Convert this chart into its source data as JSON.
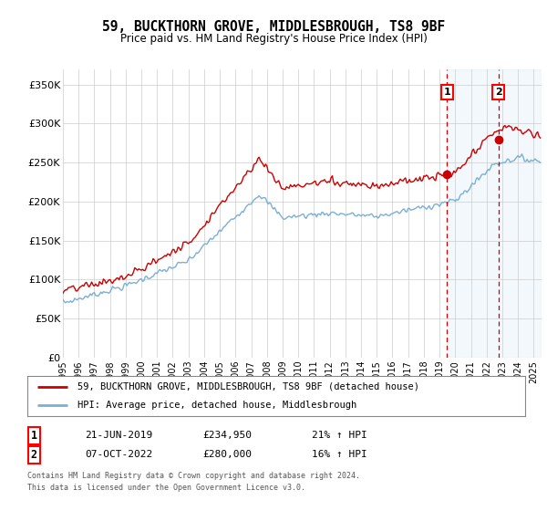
{
  "title": "59, BUCKTHORN GROVE, MIDDLESBROUGH, TS8 9BF",
  "subtitle": "Price paid vs. HM Land Registry's House Price Index (HPI)",
  "ylabel_ticks": [
    "£0",
    "£50K",
    "£100K",
    "£150K",
    "£200K",
    "£250K",
    "£300K",
    "£350K"
  ],
  "ytick_values": [
    0,
    50000,
    100000,
    150000,
    200000,
    250000,
    300000,
    350000
  ],
  "ylim": [
    0,
    370000
  ],
  "xlim_start": 1995.0,
  "xlim_end": 2025.5,
  "sale1_date": 2019.47,
  "sale1_price": 234950,
  "sale1_label": "1",
  "sale2_date": 2022.76,
  "sale2_price": 280000,
  "sale2_label": "2",
  "hpi_color": "#7bafd4",
  "price_color": "#cc0000",
  "vline_color": "#cc0000",
  "shade_color": "#d0e4f5",
  "background_color": "#ffffff",
  "plot_bg_color": "#ffffff",
  "grid_color": "#cccccc",
  "legend_line1": "59, BUCKTHORN GROVE, MIDDLESBROUGH, TS8 9BF (detached house)",
  "legend_line2": "HPI: Average price, detached house, Middlesbrough",
  "note_line1": "Contains HM Land Registry data © Crown copyright and database right 2024.",
  "note_line2": "This data is licensed under the Open Government Licence v3.0.",
  "table_row1_num": "1",
  "table_row1_date": "21-JUN-2019",
  "table_row1_price": "£234,950",
  "table_row1_hpi": "21% ↑ HPI",
  "table_row2_num": "2",
  "table_row2_date": "07-OCT-2022",
  "table_row2_price": "£280,000",
  "table_row2_hpi": "16% ↑ HPI"
}
